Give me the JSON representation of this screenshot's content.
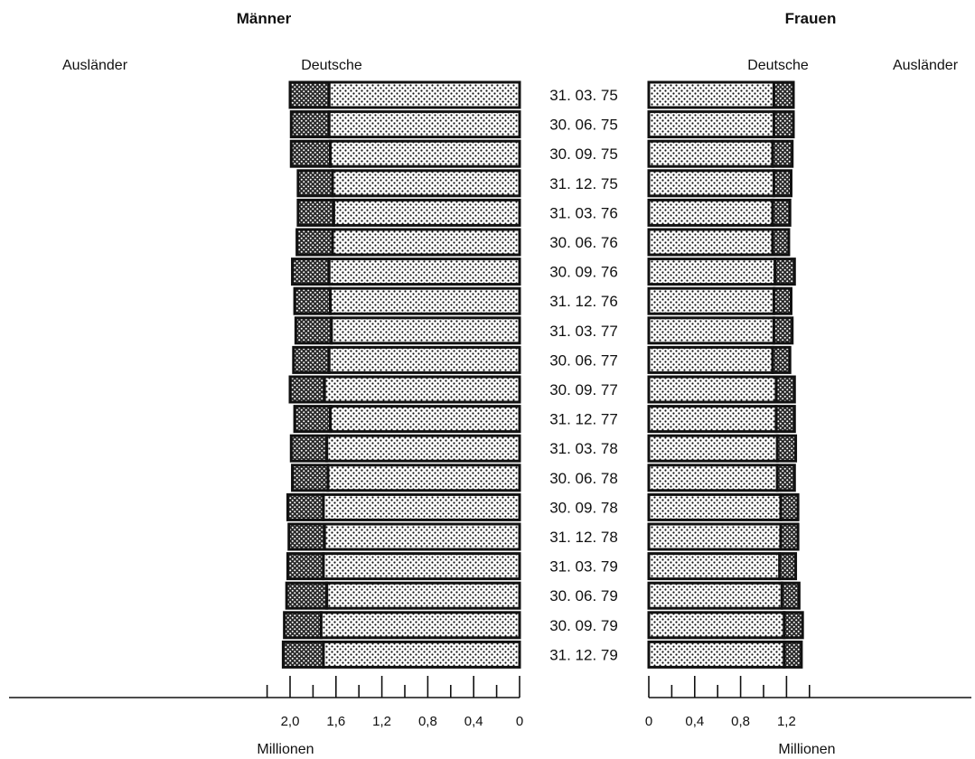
{
  "colors": {
    "ink": "#111111",
    "background": "#ffffff"
  },
  "chart_data": [
    {
      "type": "bar",
      "orientation": "horizontal",
      "stacked": true,
      "direction": "right-to-left",
      "title": "Männer",
      "xlabel": "Millionen",
      "xlim": [
        0,
        2.0
      ],
      "ticks": [
        "2,0",
        "1,6",
        "1,2",
        "0,8",
        "0,4",
        "0"
      ],
      "tick_values": [
        2.0,
        1.6,
        1.2,
        0.8,
        0.4,
        0
      ],
      "categories": [
        "31. 03. 75",
        "30. 06. 75",
        "30. 09. 75",
        "31. 12. 75",
        "31. 03. 76",
        "30. 06. 76",
        "30. 09. 76",
        "31. 12. 76",
        "31. 03. 77",
        "30. 06. 77",
        "30. 09. 77",
        "31. 12. 77",
        "31. 03. 78",
        "30. 06. 78",
        "30. 09. 78",
        "31. 12. 78",
        "31. 03. 79",
        "30. 06. 79",
        "30. 09. 79",
        "31. 12. 79"
      ],
      "series": [
        {
          "name": "Deutsche",
          "values": [
            1.66,
            1.66,
            1.65,
            1.63,
            1.62,
            1.63,
            1.66,
            1.65,
            1.64,
            1.66,
            1.7,
            1.65,
            1.68,
            1.67,
            1.71,
            1.7,
            1.71,
            1.68,
            1.73,
            1.71
          ]
        },
        {
          "name": "Ausländer",
          "values": [
            0.34,
            0.33,
            0.34,
            0.3,
            0.31,
            0.31,
            0.32,
            0.31,
            0.31,
            0.31,
            0.3,
            0.31,
            0.31,
            0.31,
            0.31,
            0.31,
            0.31,
            0.35,
            0.32,
            0.35
          ]
        }
      ]
    },
    {
      "type": "bar",
      "orientation": "horizontal",
      "stacked": true,
      "direction": "left-to-right",
      "title": "Frauen",
      "xlabel": "Millionen",
      "xlim": [
        0,
        1.4
      ],
      "ticks": [
        "0",
        "0,4",
        "0,8",
        "1,2"
      ],
      "tick_values": [
        0,
        0.4,
        0.8,
        1.2
      ],
      "categories": [
        "31. 03. 75",
        "30. 06. 75",
        "30. 09. 75",
        "31. 12. 75",
        "31. 03. 76",
        "30. 06. 76",
        "30. 09. 76",
        "31. 12. 76",
        "31. 03. 77",
        "30. 06. 77",
        "30. 09. 77",
        "31. 12. 77",
        "31. 03. 78",
        "30. 06. 78",
        "30. 09. 78",
        "31. 12. 78",
        "31. 03. 79",
        "30. 06. 79",
        "30. 09. 79",
        "31. 12. 79"
      ],
      "series": [
        {
          "name": "Deutsche",
          "values": [
            1.09,
            1.09,
            1.08,
            1.09,
            1.08,
            1.08,
            1.1,
            1.09,
            1.09,
            1.08,
            1.11,
            1.11,
            1.12,
            1.12,
            1.15,
            1.15,
            1.14,
            1.16,
            1.18,
            1.18
          ]
        },
        {
          "name": "Ausländer",
          "values": [
            0.17,
            0.17,
            0.17,
            0.15,
            0.15,
            0.14,
            0.17,
            0.15,
            0.16,
            0.15,
            0.16,
            0.16,
            0.16,
            0.15,
            0.15,
            0.15,
            0.14,
            0.15,
            0.16,
            0.15
          ]
        }
      ]
    }
  ]
}
